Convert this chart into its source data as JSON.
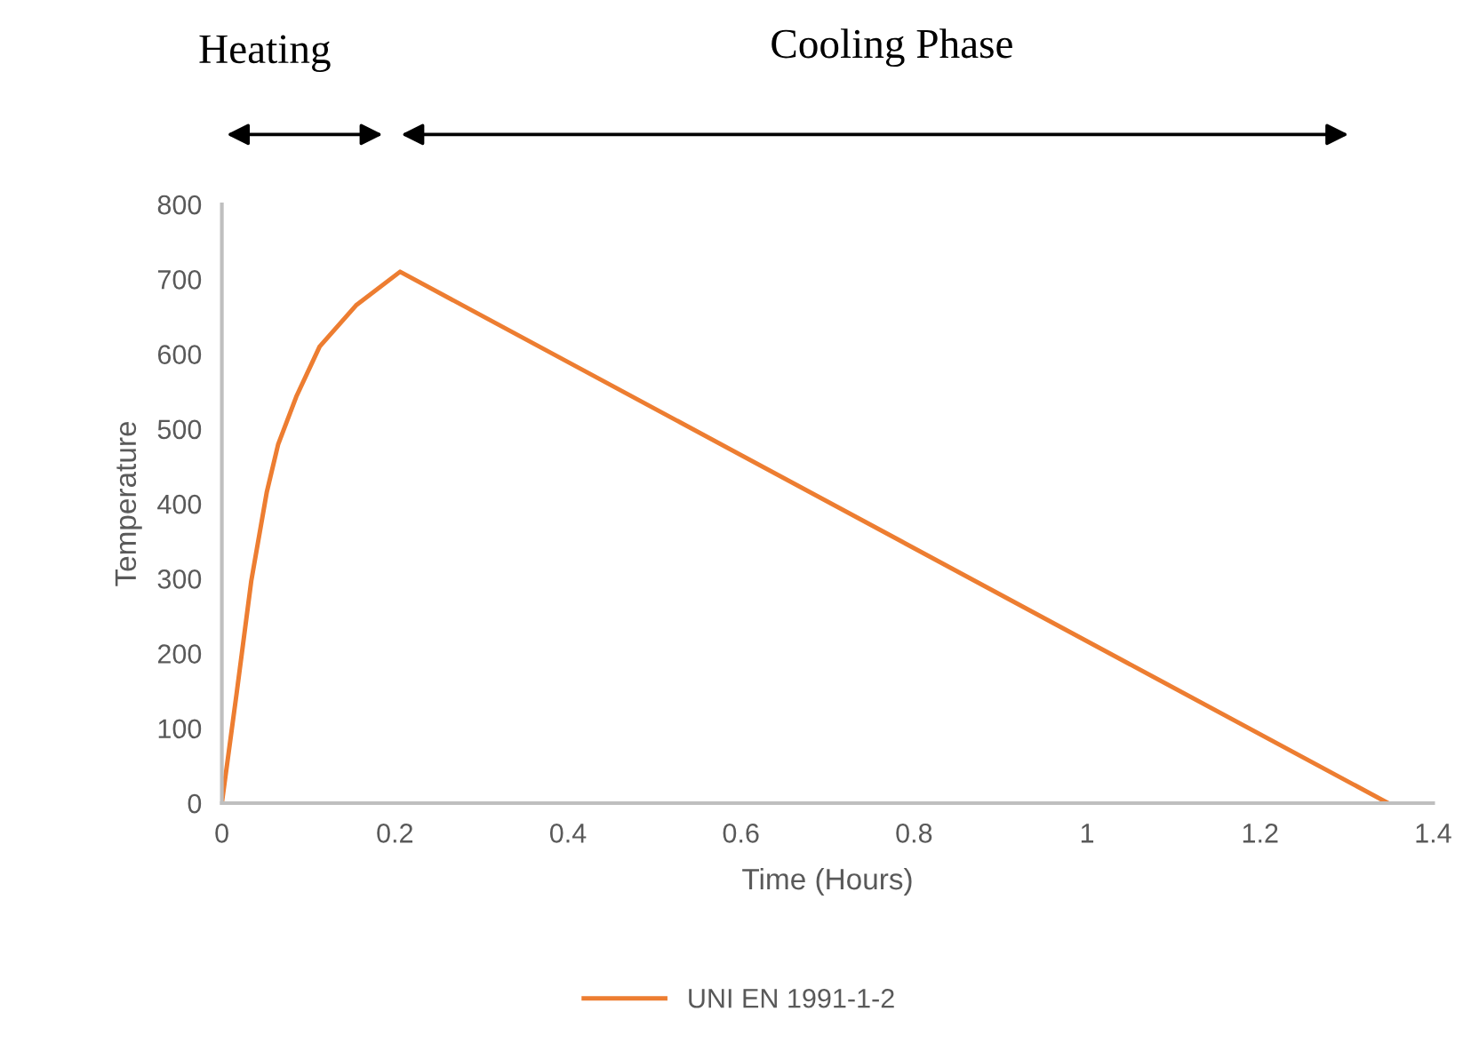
{
  "chart_data": {
    "type": "line",
    "xlabel": "Time (Hours)",
    "ylabel": "Temperature",
    "annotations": [
      "Heating",
      "Cooling Phase"
    ],
    "x": [
      0,
      0.017,
      0.034,
      0.052,
      0.065,
      0.086,
      0.113,
      0.155,
      0.206,
      1.348
    ],
    "series": [
      {
        "name": "UNI EN 1991-1-2",
        "color": "#ed7d31",
        "values": [
          0,
          146,
          297,
          416,
          479,
          543,
          610,
          665,
          710,
          0
        ]
      }
    ],
    "xlim": [
      0,
      1.4
    ],
    "ylim": [
      0,
      800
    ],
    "xticks": [
      0,
      0.2,
      0.4,
      0.6,
      0.8,
      1,
      1.2,
      1.4
    ],
    "yticks": [
      0,
      100,
      200,
      300,
      400,
      500,
      600,
      700,
      800
    ],
    "grid": false,
    "legend": "bottom",
    "marker": "none",
    "line_style": "solid"
  }
}
